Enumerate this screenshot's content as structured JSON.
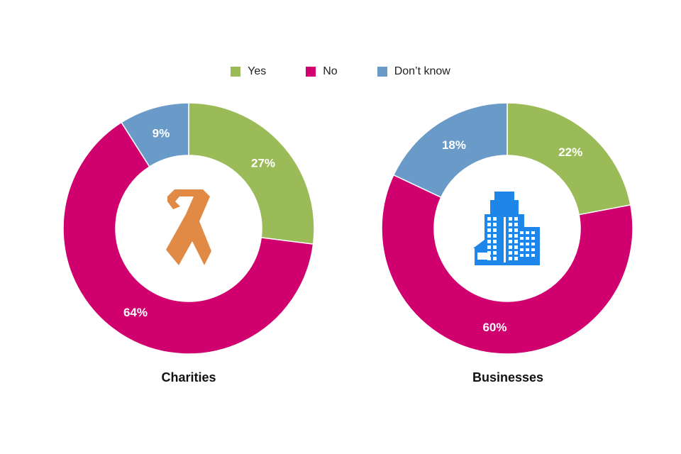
{
  "legend": [
    {
      "label": "Yes",
      "color": "#9BBB59"
    },
    {
      "label": "No",
      "color": "#D0006F"
    },
    {
      "label": "Don’t know",
      "color": "#6A9BC8"
    }
  ],
  "chart_data": [
    {
      "type": "pie",
      "donut": true,
      "title": "Charities",
      "icon": "ribbon-icon",
      "categories": [
        "Yes",
        "No",
        "Don’t know"
      ],
      "values": [
        27,
        64,
        9
      ],
      "labels": [
        "27%",
        "64%",
        "9%"
      ]
    },
    {
      "type": "pie",
      "donut": true,
      "title": "Businesses",
      "icon": "office-building-icon",
      "categories": [
        "Yes",
        "No",
        "Don’t know"
      ],
      "values": [
        22,
        60,
        18
      ],
      "labels": [
        "22%",
        "60%",
        "18%"
      ]
    }
  ]
}
